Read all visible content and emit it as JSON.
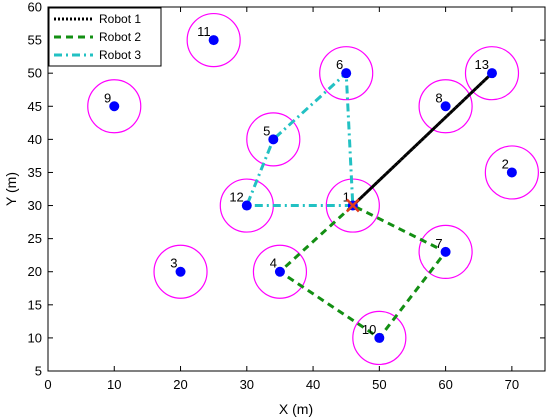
{
  "chart_data": {
    "type": "scatter",
    "xlabel": "X (m)",
    "ylabel": "Y (m)",
    "xlim": [
      0,
      75
    ],
    "ylim": [
      5,
      60
    ],
    "xticks": [
      0,
      10,
      20,
      30,
      40,
      50,
      60,
      70
    ],
    "yticks": [
      5,
      10,
      15,
      20,
      25,
      30,
      35,
      40,
      45,
      50,
      55,
      60
    ],
    "grid": false,
    "legend": "top-left",
    "coverage_radius": 4,
    "colors": {
      "target": "#0000ff",
      "circle": "#ff00ff",
      "start": "#e23b1f",
      "robot1": "#000000",
      "robot2": "#138f13",
      "robot3": "#22c1c3"
    },
    "targets": [
      {
        "label": "1",
        "x": 46,
        "y": 30
      },
      {
        "label": "2",
        "x": 70,
        "y": 35
      },
      {
        "label": "3",
        "x": 20,
        "y": 20
      },
      {
        "label": "4",
        "x": 35,
        "y": 20
      },
      {
        "label": "5",
        "x": 34,
        "y": 40
      },
      {
        "label": "6",
        "x": 45,
        "y": 50
      },
      {
        "label": "7",
        "x": 60,
        "y": 23
      },
      {
        "label": "8",
        "x": 60,
        "y": 45
      },
      {
        "label": "9",
        "x": 10,
        "y": 45
      },
      {
        "label": "10",
        "x": 50,
        "y": 10
      },
      {
        "label": "11",
        "x": 25,
        "y": 55
      },
      {
        "label": "12",
        "x": 30,
        "y": 30
      },
      {
        "label": "13",
        "x": 67,
        "y": 50
      }
    ],
    "start": {
      "x": 46,
      "y": 30
    },
    "series": [
      {
        "name": "Robot 1",
        "style": "dotted",
        "color": "#000000",
        "points": [
          [
            46,
            30
          ],
          [
            67,
            50
          ],
          [
            46,
            30
          ]
        ]
      },
      {
        "name": "Robot 2",
        "style": "dashed",
        "color": "#138f13",
        "points": [
          [
            46,
            30
          ],
          [
            35,
            20
          ],
          [
            50,
            10
          ],
          [
            60,
            23
          ],
          [
            46,
            30
          ]
        ]
      },
      {
        "name": "Robot 3",
        "style": "dashdot",
        "color": "#22c1c3",
        "points": [
          [
            46,
            30
          ],
          [
            30,
            30
          ],
          [
            34,
            40
          ],
          [
            45,
            50
          ],
          [
            46,
            30
          ]
        ]
      }
    ]
  }
}
